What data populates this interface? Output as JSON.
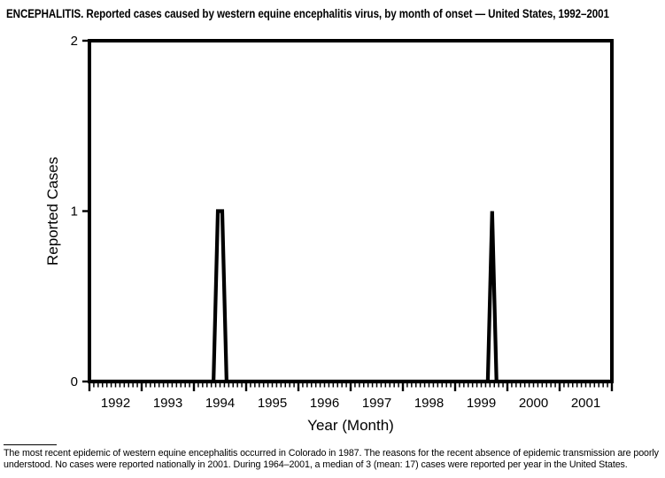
{
  "title": "ENCEPHALITIS. Reported cases caused by western equine encephalitis virus, by month of onset — United States, 1992–2001",
  "footnote_lines": [
    "The most recent epidemic of western equine encephalitis occurred in Colorado in 1987. The reasons for the recent absence of epidemic transmission are poorly",
    "understood. No cases were reported nationally in 2001. During 1964–2001, a median of 3 (mean: 17) cases were reported per year in the United States."
  ],
  "chart_data": {
    "type": "line",
    "title": "ENCEPHALITIS. Reported cases caused by western equine encephalitis virus, by month of onset — United States, 1992–2001",
    "xlabel": "Year (Month)",
    "ylabel": "Reported Cases",
    "x_unit": "month",
    "x_start_year": 1992,
    "x_end_year": 2001,
    "year_tick_labels": [
      "1992",
      "1993",
      "1994",
      "1995",
      "1996",
      "1997",
      "1998",
      "1999",
      "2000",
      "2001"
    ],
    "y_ticks": [
      0,
      1,
      2
    ],
    "y_tick_labels": [
      "0",
      "1",
      "2"
    ],
    "ylim": [
      0,
      2
    ],
    "grid": false,
    "legend": "none",
    "plot_border": true,
    "line_color": "#000000",
    "background_color": "#ffffff",
    "monthly_values_default": 0,
    "nonzero_points": [
      {
        "year": 1994,
        "month": 6,
        "value": 1
      },
      {
        "year": 1994,
        "month": 7,
        "value": 1
      },
      {
        "year": 1999,
        "month": 9,
        "value": 1
      }
    ]
  }
}
